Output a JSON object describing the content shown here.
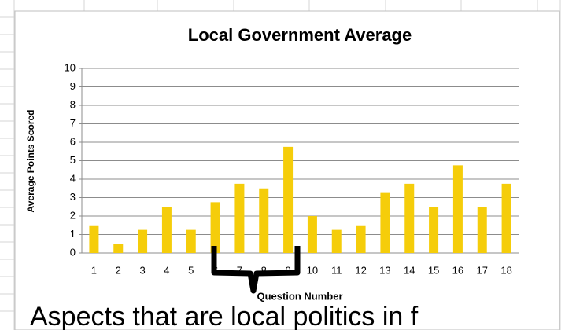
{
  "chart_data": {
    "type": "bar",
    "title": "Local Government Average",
    "x_label": "Question Number",
    "y_label": "Average Points Scored",
    "annotation": "Aspects that are local politics in f",
    "categories": [
      "1",
      "2",
      "3",
      "4",
      "5",
      "6",
      "7",
      "8",
      "9",
      "10",
      "11",
      "12",
      "13",
      "14",
      "15",
      "16",
      "17",
      "18"
    ],
    "values": [
      1.5,
      0.5,
      1.25,
      2.5,
      1.25,
      2.75,
      3.75,
      3.5,
      5.75,
      2,
      1.25,
      1.5,
      3.25,
      3.75,
      2.5,
      4.75,
      2.5,
      3.75
    ],
    "color": "#f5cd0a",
    "ylim": [
      0,
      10
    ],
    "yticks": [
      0,
      1,
      2,
      3,
      4,
      5,
      6,
      7,
      8,
      9,
      10
    ],
    "grid": true
  }
}
